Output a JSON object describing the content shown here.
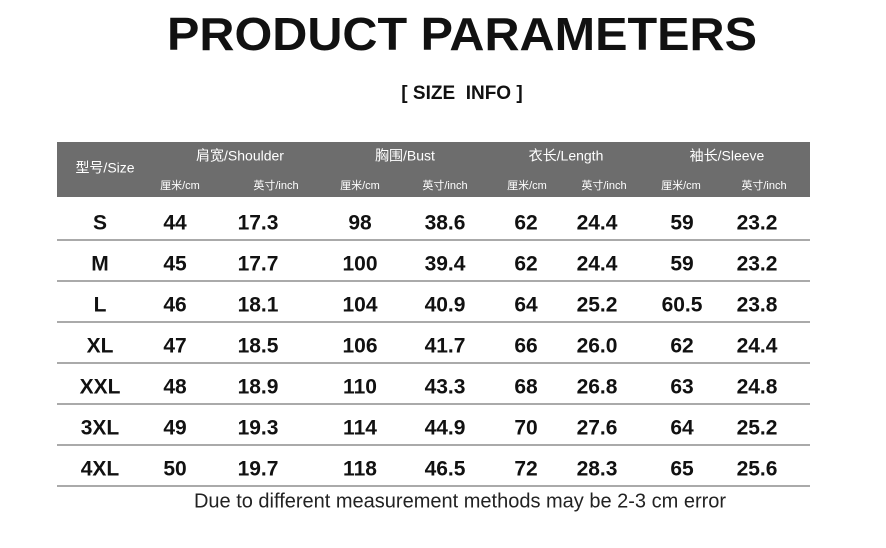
{
  "header": {
    "title": "PRODUCT PARAMETERS",
    "subtitle": "[ SIZE  INFO ]"
  },
  "table": {
    "size_header": "型号/Size",
    "groups": [
      "肩宽/Shoulder",
      "胸围/Bust",
      "衣长/Length",
      "袖长/Sleeve"
    ],
    "units": [
      "厘米/cm",
      "英寸/inch",
      "厘米/cm",
      "英寸/inch",
      "厘米/cm",
      "英寸/inch",
      "厘米/cm",
      "英寸/inch"
    ],
    "rows": [
      [
        "S",
        "44",
        "17.3",
        "98",
        "38.6",
        "62",
        "24.4",
        "59",
        "23.2"
      ],
      [
        "M",
        "45",
        "17.7",
        "100",
        "39.4",
        "62",
        "24.4",
        "59",
        "23.2"
      ],
      [
        "L",
        "46",
        "18.1",
        "104",
        "40.9",
        "64",
        "25.2",
        "60.5",
        "23.8"
      ],
      [
        "XL",
        "47",
        "18.5",
        "106",
        "41.7",
        "66",
        "26.0",
        "62",
        "24.4"
      ],
      [
        "XXL",
        "48",
        "18.9",
        "110",
        "43.3",
        "68",
        "26.8",
        "63",
        "24.8"
      ],
      [
        "3XL",
        "49",
        "19.3",
        "114",
        "44.9",
        "70",
        "27.6",
        "64",
        "25.2"
      ],
      [
        "4XL",
        "50",
        "19.7",
        "118",
        "46.5",
        "72",
        "28.3",
        "65",
        "25.6"
      ]
    ]
  },
  "footer": "Due to different measurement methods may be 2-3 cm error"
}
